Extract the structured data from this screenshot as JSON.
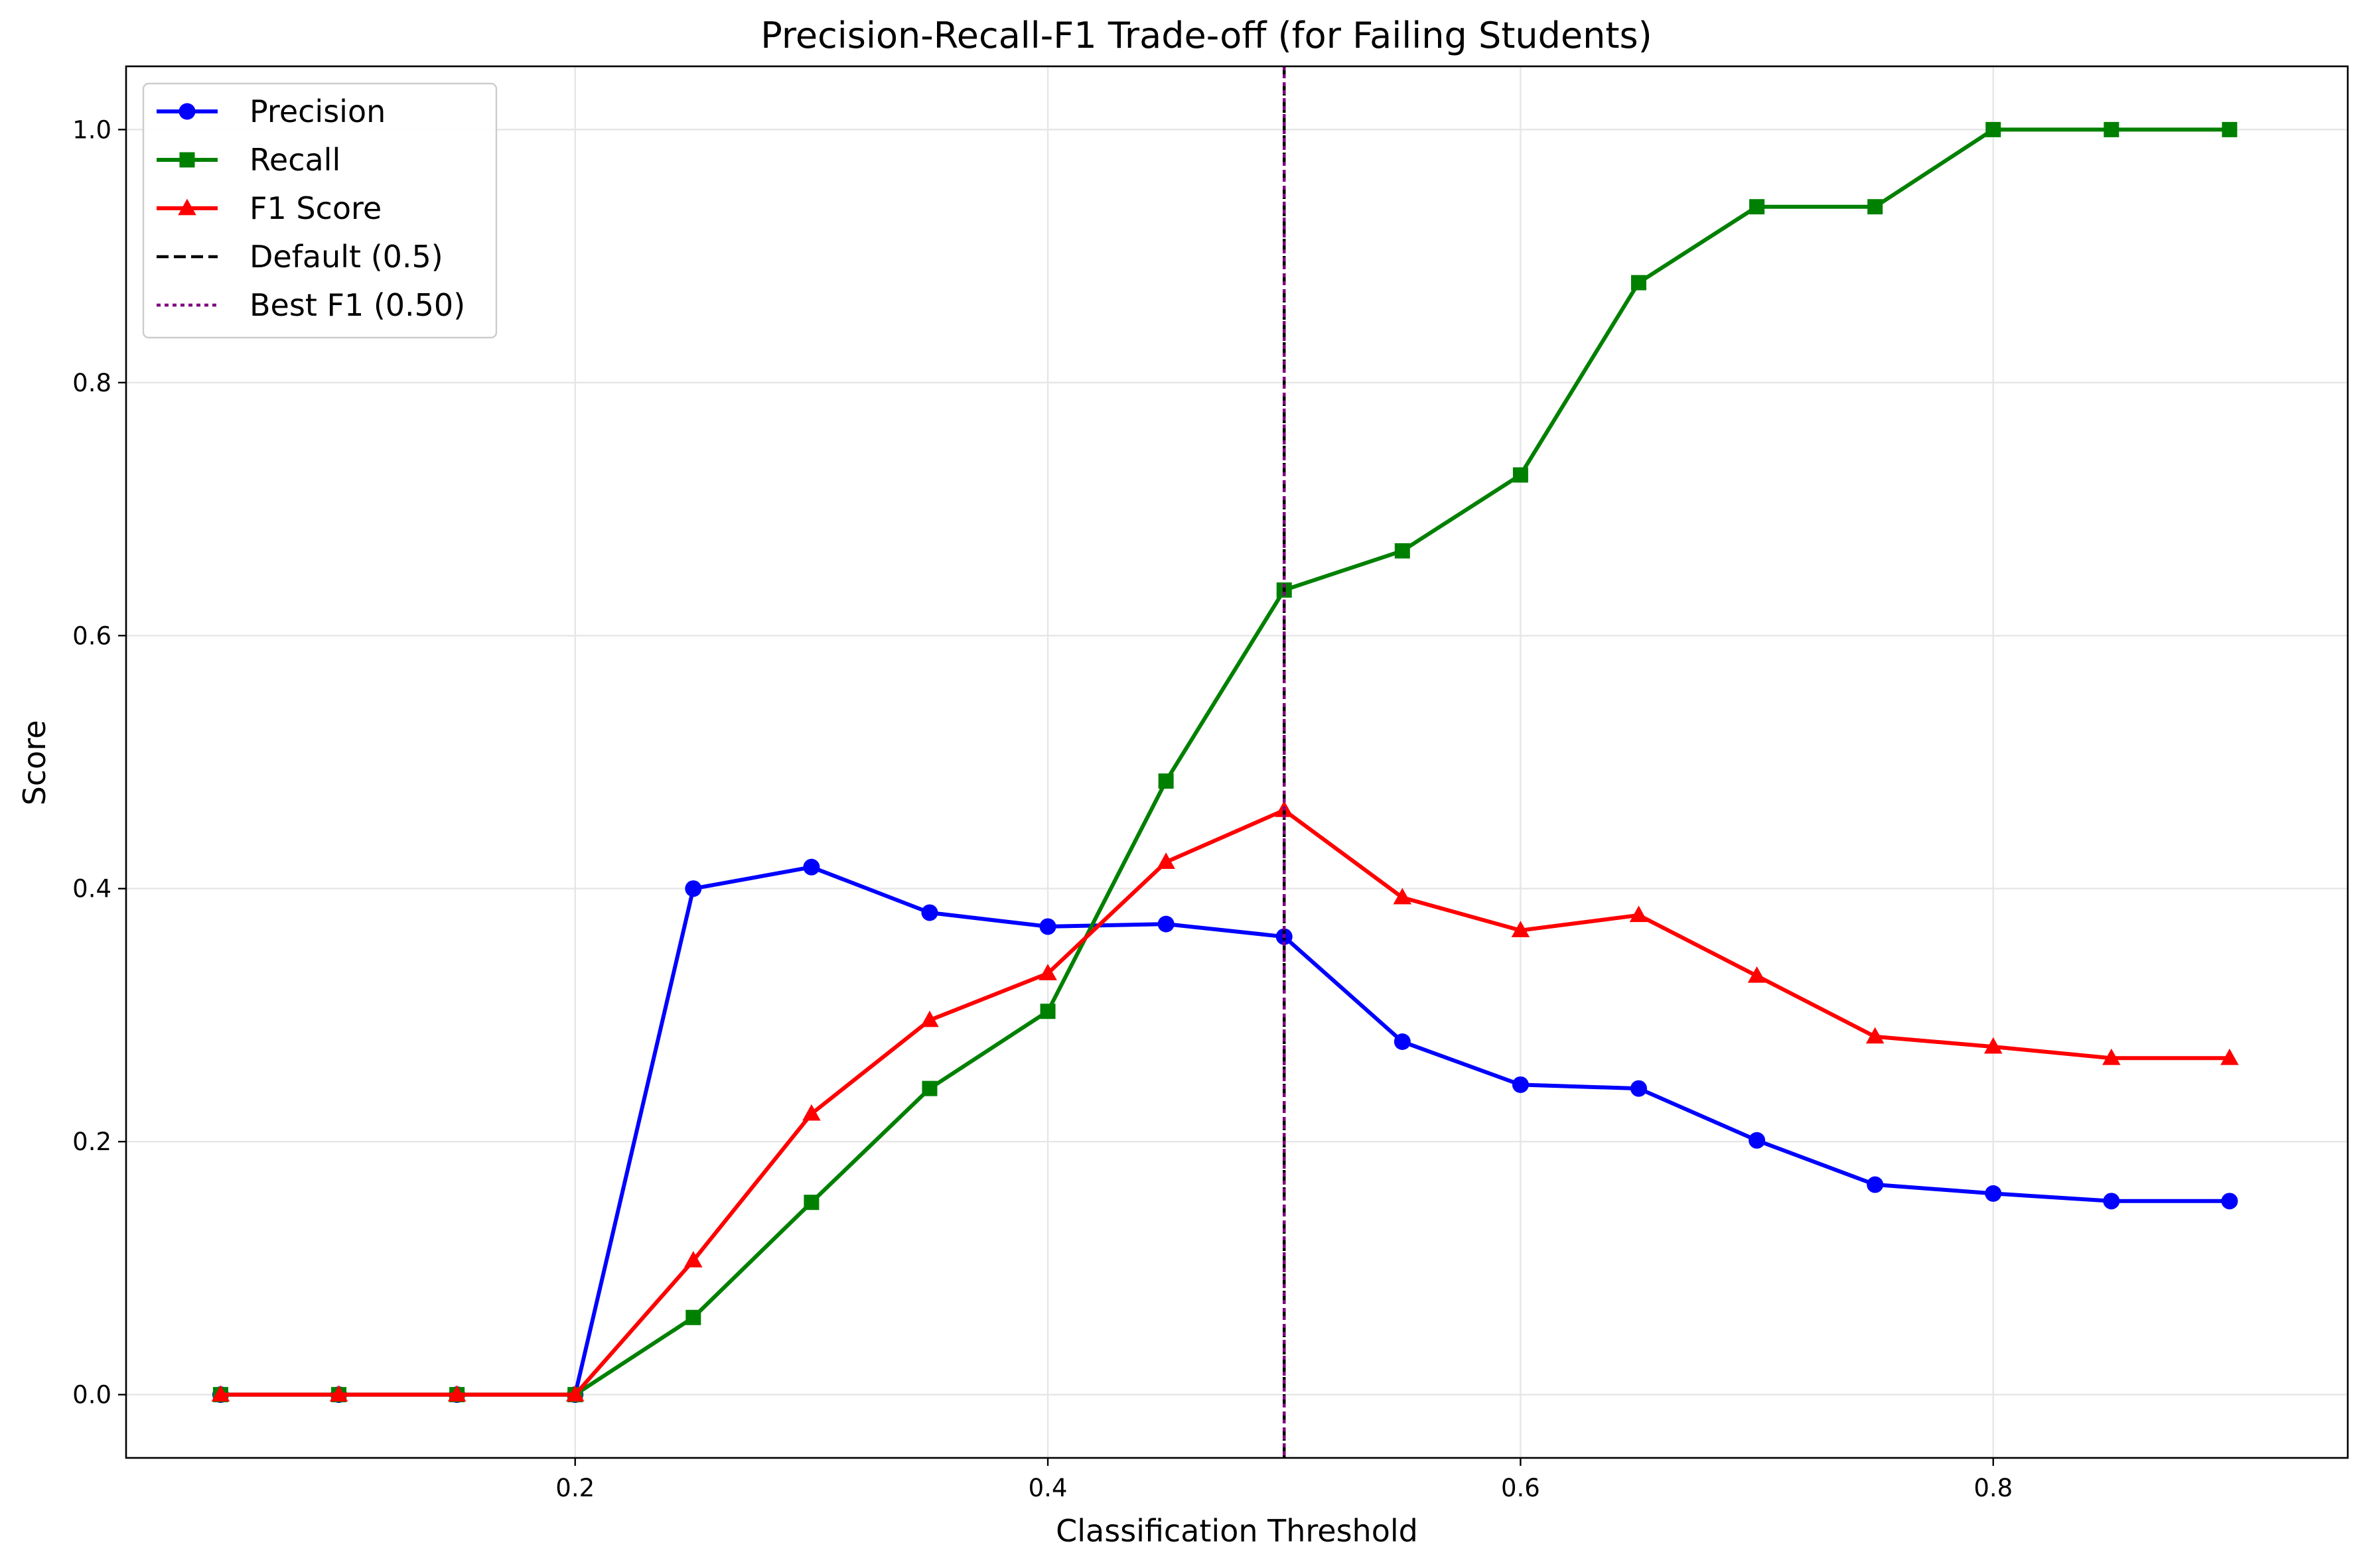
{
  "chart_data": {
    "type": "line",
    "title": "Precision-Recall-F1 Trade-off (for Failing Students)",
    "xlabel": "Classification Threshold",
    "ylabel": "Score",
    "xlim": [
      0.01,
      0.95
    ],
    "ylim": [
      -0.05,
      1.05
    ],
    "xticks": [
      0.2,
      0.4,
      0.6,
      0.8
    ],
    "xtick_labels": [
      "0.2",
      "0.4",
      "0.6",
      "0.8"
    ],
    "yticks": [
      0.0,
      0.2,
      0.4,
      0.6,
      0.8,
      1.0
    ],
    "ytick_labels": [
      "0.0",
      "0.2",
      "0.4",
      "0.6",
      "0.8",
      "1.0"
    ],
    "grid": true,
    "legend_position": "top-left",
    "x": [
      0.05,
      0.1,
      0.15,
      0.2,
      0.25,
      0.3,
      0.35,
      0.4,
      0.45,
      0.5,
      0.55,
      0.6,
      0.65,
      0.7,
      0.75,
      0.8,
      0.85,
      0.9
    ],
    "series": [
      {
        "name": "Precision",
        "color": "#0000ff",
        "marker": "circle",
        "values": [
          0.0,
          0.0,
          0.0,
          0.0,
          0.4,
          0.417,
          0.381,
          0.37,
          0.372,
          0.362,
          0.279,
          0.245,
          0.242,
          0.201,
          0.166,
          0.159,
          0.153,
          0.153
        ]
      },
      {
        "name": "Recall",
        "color": "#008000",
        "marker": "square",
        "values": [
          0.0,
          0.0,
          0.0,
          0.0,
          0.061,
          0.152,
          0.242,
          0.303,
          0.485,
          0.636,
          0.667,
          0.727,
          0.879,
          0.939,
          0.939,
          1.0,
          1.0,
          1.0
        ]
      },
      {
        "name": "F1 Score",
        "color": "#ff0000",
        "marker": "triangle",
        "values": [
          0.0,
          0.0,
          0.0,
          0.0,
          0.106,
          0.222,
          0.296,
          0.333,
          0.421,
          0.462,
          0.393,
          0.367,
          0.379,
          0.331,
          0.283,
          0.275,
          0.266,
          0.266
        ]
      }
    ],
    "reference_lines": [
      {
        "name": "Default (0.5)",
        "x": 0.5,
        "color": "#000000",
        "style": "dashed"
      },
      {
        "name": "Best F1 (0.50)",
        "x": 0.5,
        "color": "#800080",
        "style": "dotted"
      }
    ]
  }
}
